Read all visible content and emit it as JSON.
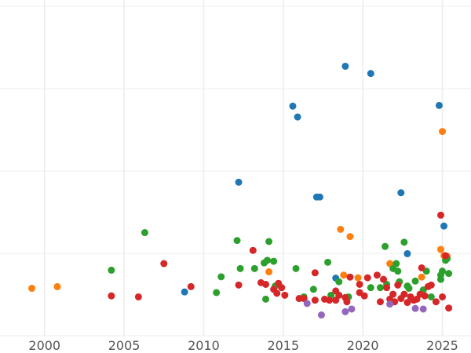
{
  "chart_data": {
    "type": "scatter",
    "title": "",
    "xlabel": "",
    "ylabel": "",
    "xlim": [
      1997.2,
      2026.8
    ],
    "ylim": [
      0,
      100
    ],
    "x_ticks": [
      "2000",
      "2005",
      "2010",
      "2015",
      "2020",
      "2025"
    ],
    "x_tick_values": [
      2000,
      2005,
      2010,
      2015,
      2020,
      2025
    ],
    "y_grid_values": [
      0,
      25,
      50,
      75,
      100
    ],
    "grid": true,
    "legend": "none",
    "series": [
      {
        "color": "#1f77b4",
        "points": [
          [
            2008.8,
            13.3
          ],
          [
            2012.2,
            46.6
          ],
          [
            2015.6,
            69.7
          ],
          [
            2015.9,
            66.4
          ],
          [
            2017.1,
            42.1
          ],
          [
            2017.3,
            42.1
          ],
          [
            2018.3,
            17.5
          ],
          [
            2018.9,
            81.8
          ],
          [
            2020.5,
            79.6
          ],
          [
            2022.4,
            43.4
          ],
          [
            2022.8,
            24.9
          ],
          [
            2024.8,
            69.9
          ],
          [
            2025.1,
            33.3
          ]
        ]
      },
      {
        "color": "#ff7f0e",
        "points": [
          [
            1999.2,
            14.4
          ],
          [
            2000.8,
            14.9
          ],
          [
            2014.1,
            19.4
          ],
          [
            2018.6,
            32.3
          ],
          [
            2018.8,
            18.4
          ],
          [
            2019.2,
            30.1
          ],
          [
            2019.7,
            17.6
          ],
          [
            2021.7,
            21.9
          ],
          [
            2023.7,
            17.8
          ],
          [
            2024.9,
            26.2
          ],
          [
            2025.0,
            62.0
          ],
          [
            2025.1,
            24.3
          ],
          [
            2025.3,
            24.1
          ]
        ]
      },
      {
        "color": "#2ca02c",
        "points": [
          [
            2004.2,
            19.9
          ],
          [
            2006.3,
            31.3
          ],
          [
            2010.8,
            13.1
          ],
          [
            2011.1,
            17.9
          ],
          [
            2012.1,
            28.9
          ],
          [
            2012.3,
            20.4
          ],
          [
            2013.2,
            20.4
          ],
          [
            2013.8,
            22.1
          ],
          [
            2013.9,
            11.1
          ],
          [
            2014.0,
            22.9
          ],
          [
            2014.1,
            28.6
          ],
          [
            2014.4,
            22.6
          ],
          [
            2014.5,
            15.1
          ],
          [
            2015.8,
            20.4
          ],
          [
            2016.3,
            11.8
          ],
          [
            2016.9,
            14.1
          ],
          [
            2017.8,
            22.3
          ],
          [
            2018.0,
            12.3
          ],
          [
            2018.5,
            16.4
          ],
          [
            2019.1,
            11.8
          ],
          [
            2020.5,
            14.6
          ],
          [
            2021.1,
            14.6
          ],
          [
            2021.4,
            27.1
          ],
          [
            2021.5,
            15.6
          ],
          [
            2021.9,
            20.4
          ],
          [
            2022.1,
            21.9
          ],
          [
            2022.2,
            19.6
          ],
          [
            2022.3,
            16.4
          ],
          [
            2022.6,
            28.4
          ],
          [
            2022.8,
            15.1
          ],
          [
            2022.9,
            14.4
          ],
          [
            2023.3,
            16.6
          ],
          [
            2023.8,
            13.9
          ],
          [
            2024.0,
            19.6
          ],
          [
            2024.3,
            11.8
          ],
          [
            2024.9,
            17.1
          ],
          [
            2025.0,
            19.6
          ],
          [
            2024.9,
            18.4
          ],
          [
            2025.2,
            22.9
          ],
          [
            2025.3,
            23.4
          ],
          [
            2025.4,
            18.9
          ]
        ]
      },
      {
        "color": "#d62728",
        "points": [
          [
            2004.2,
            12.1
          ],
          [
            2005.9,
            11.8
          ],
          [
            2007.5,
            21.9
          ],
          [
            2009.2,
            14.9
          ],
          [
            2012.2,
            15.4
          ],
          [
            2013.1,
            25.9
          ],
          [
            2013.6,
            16.1
          ],
          [
            2013.9,
            15.6
          ],
          [
            2014.4,
            14.1
          ],
          [
            2014.6,
            12.9
          ],
          [
            2014.7,
            15.9
          ],
          [
            2014.9,
            14.6
          ],
          [
            2015.1,
            12.3
          ],
          [
            2016.0,
            11.3
          ],
          [
            2016.3,
            11.3
          ],
          [
            2017.0,
            10.8
          ],
          [
            2017.0,
            19.1
          ],
          [
            2017.6,
            11.1
          ],
          [
            2017.9,
            10.8
          ],
          [
            2018.3,
            10.8
          ],
          [
            2018.3,
            13.6
          ],
          [
            2018.5,
            12.3
          ],
          [
            2018.9,
            11.6
          ],
          [
            2019.0,
            10.3
          ],
          [
            2019.2,
            17.8
          ],
          [
            2019.8,
            15.6
          ],
          [
            2019.8,
            13.1
          ],
          [
            2020.1,
            12.1
          ],
          [
            2020.3,
            17.6
          ],
          [
            2020.9,
            18.4
          ],
          [
            2021.1,
            10.3
          ],
          [
            2021.3,
            17.1
          ],
          [
            2021.5,
            14.6
          ],
          [
            2021.7,
            11.1
          ],
          [
            2021.9,
            12.6
          ],
          [
            2022.0,
            10.3
          ],
          [
            2022.2,
            15.4
          ],
          [
            2022.4,
            11.3
          ],
          [
            2022.6,
            12.6
          ],
          [
            2022.8,
            10.1
          ],
          [
            2023.0,
            11.8
          ],
          [
            2023.2,
            10.8
          ],
          [
            2023.4,
            11.1
          ],
          [
            2023.6,
            12.6
          ],
          [
            2023.7,
            20.6
          ],
          [
            2023.9,
            12.1
          ],
          [
            2024.1,
            14.9
          ],
          [
            2024.3,
            15.4
          ],
          [
            2024.6,
            10.3
          ],
          [
            2024.9,
            36.6
          ],
          [
            2025.0,
            11.8
          ],
          [
            2025.2,
            24.3
          ],
          [
            2025.4,
            8.4
          ]
        ]
      },
      {
        "color": "#9467bd",
        "points": [
          [
            2016.5,
            9.8
          ],
          [
            2017.4,
            6.3
          ],
          [
            2018.9,
            7.3
          ],
          [
            2019.3,
            8.1
          ],
          [
            2021.7,
            9.6
          ],
          [
            2023.3,
            8.3
          ],
          [
            2023.8,
            8.1
          ]
        ]
      }
    ]
  }
}
